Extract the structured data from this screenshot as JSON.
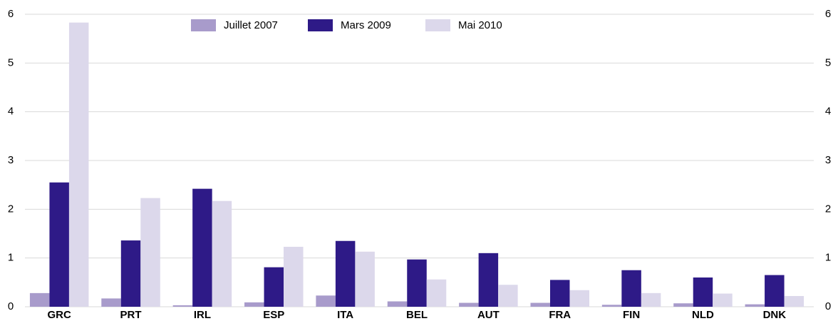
{
  "chart_data": {
    "type": "bar",
    "categories": [
      "GRC",
      "PRT",
      "IRL",
      "ESP",
      "ITA",
      "BEL",
      "AUT",
      "FRA",
      "FIN",
      "NLD",
      "DNK"
    ],
    "series": [
      {
        "name": "Juillet 2007",
        "color": "#a89bcb",
        "values": [
          0.28,
          0.17,
          0.03,
          0.09,
          0.23,
          0.11,
          0.08,
          0.08,
          0.04,
          0.07,
          0.05
        ]
      },
      {
        "name": "Mars 2009",
        "color": "#2e1a87",
        "values": [
          2.55,
          1.36,
          2.42,
          0.81,
          1.35,
          0.97,
          1.1,
          0.55,
          0.75,
          0.6,
          0.65
        ]
      },
      {
        "name": "Mai 2010",
        "color": "#dcd8eb",
        "values": [
          5.83,
          2.23,
          2.17,
          1.23,
          1.13,
          0.56,
          0.45,
          0.34,
          0.28,
          0.27,
          0.22
        ]
      }
    ],
    "ylim": [
      0,
      6
    ],
    "yticks": [
      0,
      1,
      2,
      3,
      4,
      5,
      6
    ],
    "grid": true
  }
}
